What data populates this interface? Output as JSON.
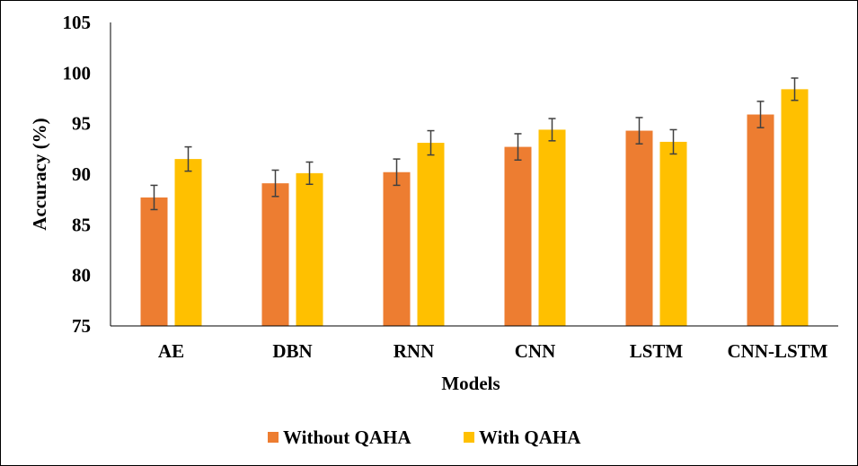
{
  "chart_data": {
    "type": "bar",
    "categories": [
      "AE",
      "DBN",
      "RNN",
      "CNN",
      "LSTM",
      "CNN-LSTM"
    ],
    "series": [
      {
        "name": "Without QAHA",
        "color": "#ED7D31",
        "values": [
          87.7,
          89.1,
          90.2,
          92.7,
          94.3,
          95.9
        ],
        "errors": [
          1.2,
          1.3,
          1.3,
          1.3,
          1.3,
          1.3
        ]
      },
      {
        "name": "With QAHA",
        "color": "#FFC000",
        "values": [
          91.5,
          90.1,
          93.1,
          94.4,
          93.2,
          98.4
        ],
        "errors": [
          1.2,
          1.1,
          1.2,
          1.1,
          1.2,
          1.1
        ]
      }
    ],
    "xlabel": "Models",
    "ylabel": "Accuracy (%)",
    "ylim": [
      75,
      105
    ],
    "yticks": [
      75,
      80,
      85,
      90,
      95,
      100,
      105
    ],
    "grid": false,
    "legend": "bottom"
  }
}
